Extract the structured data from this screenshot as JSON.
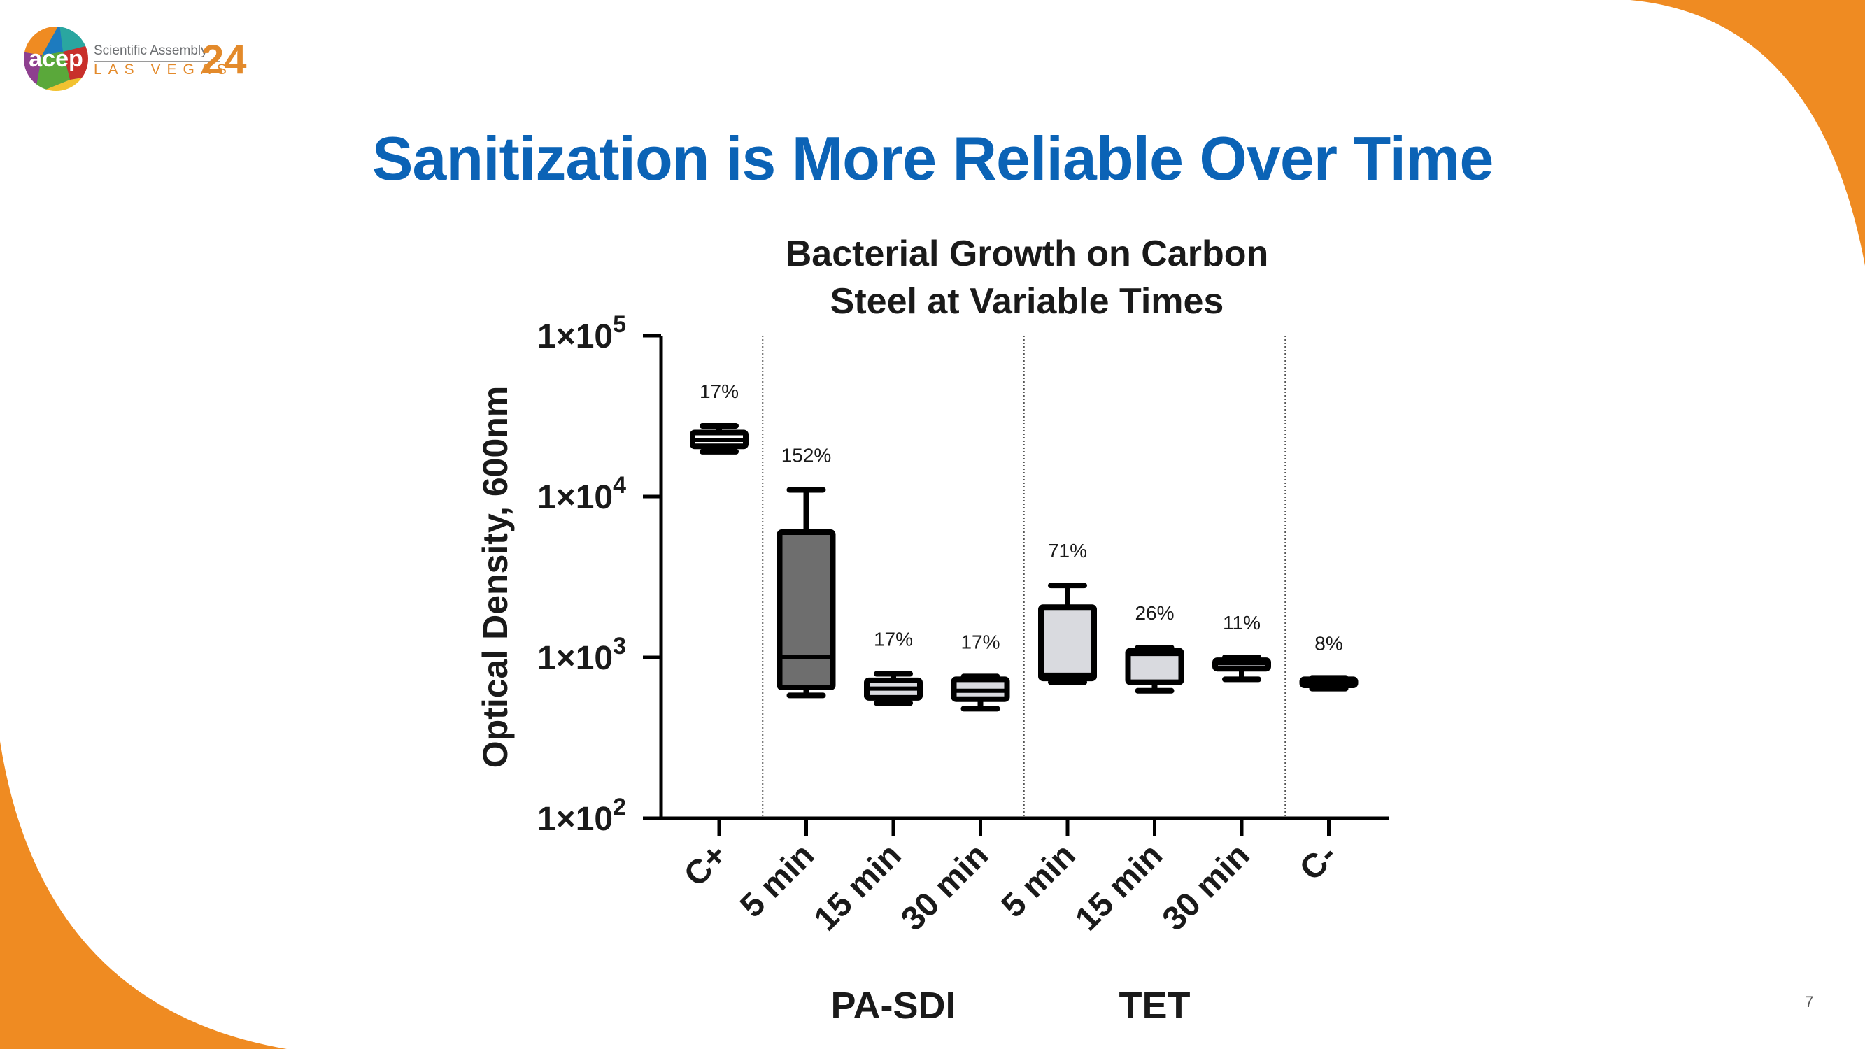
{
  "branding": {
    "logo_text": "acep",
    "assembly": "Scientific Assembly",
    "city": "LAS VEGAS",
    "year": "24"
  },
  "slide": {
    "title": "Sanitization is More Reliable Over Time",
    "page_number": "7"
  },
  "colors": {
    "title": "#0b63b6",
    "accent_orange": "#ef8b22",
    "box_dark": "#6e6e6e",
    "box_light": "#d9dadf",
    "box_white": "#ffffff"
  },
  "chart_data": {
    "type": "box",
    "title_lines": [
      "Bacterial Growth on Carbon",
      "Steel at Variable Times"
    ],
    "ylabel": "Optical Density, 600nm",
    "yscale": "log",
    "ylim": [
      100,
      100000
    ],
    "y_ticks": [
      {
        "value": 100000,
        "base": "1×10",
        "exp": "5"
      },
      {
        "value": 10000,
        "base": "1×10",
        "exp": "4"
      },
      {
        "value": 1000,
        "base": "1×10",
        "exp": "3"
      },
      {
        "value": 100,
        "base": "1×10",
        "exp": "2"
      }
    ],
    "categories": [
      "C+",
      "5 min",
      "15 min",
      "30 min",
      "5 min",
      "15 min",
      "30 min",
      "C-"
    ],
    "groups": [
      {
        "label": "PA-SDI",
        "from": 1,
        "to": 3
      },
      {
        "label": "TET",
        "from": 4,
        "to": 6
      }
    ],
    "grid": false,
    "boxes": [
      {
        "category": "C+",
        "min": 19000,
        "q1": 20500,
        "median": 22500,
        "q3": 25000,
        "max": 27500,
        "cv_label": "17%",
        "fill": "#ffffff"
      },
      {
        "category": "5 min",
        "group": "PA-SDI",
        "min": 580,
        "q1": 650,
        "median": 1000,
        "q3": 6000,
        "max": 11000,
        "cv_label": "152%",
        "fill": "#6e6e6e"
      },
      {
        "category": "15 min",
        "group": "PA-SDI",
        "min": 520,
        "q1": 560,
        "median": 640,
        "q3": 720,
        "max": 790,
        "cv_label": "17%",
        "fill": "#d9dadf"
      },
      {
        "category": "30 min",
        "group": "PA-SDI",
        "min": 480,
        "q1": 550,
        "median": 620,
        "q3": 730,
        "max": 760,
        "cv_label": "17%",
        "fill": "#d9dadf"
      },
      {
        "category": "5 min",
        "group": "TET",
        "min": 700,
        "q1": 740,
        "median": 780,
        "q3": 2050,
        "max": 2800,
        "cv_label": "71%",
        "fill": "#d9dadf"
      },
      {
        "category": "15 min",
        "group": "TET",
        "min": 620,
        "q1": 700,
        "median": 1050,
        "q3": 1100,
        "max": 1150,
        "cv_label": "26%",
        "fill": "#d9dadf"
      },
      {
        "category": "30 min",
        "group": "TET",
        "min": 730,
        "q1": 850,
        "median": 920,
        "q3": 960,
        "max": 1000,
        "cv_label": "11%",
        "fill": "#d9dadf"
      },
      {
        "category": "C-",
        "min": 640,
        "q1": 670,
        "median": 700,
        "q3": 730,
        "max": 745,
        "cv_label": "8%",
        "fill": "#d9dadf"
      }
    ]
  }
}
